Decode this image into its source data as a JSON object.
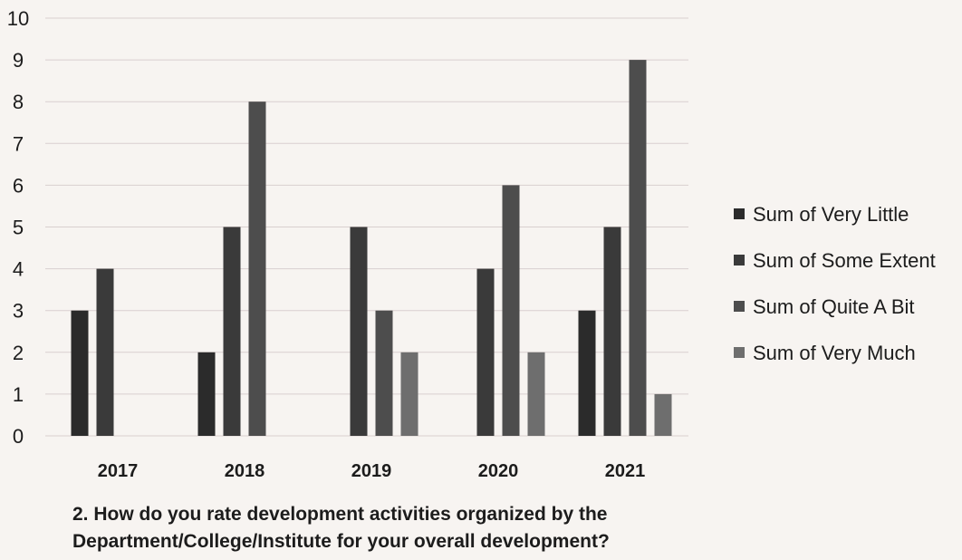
{
  "chart_data": {
    "type": "bar",
    "categories": [
      "2017",
      "2018",
      "2019",
      "2020",
      "2021"
    ],
    "series": [
      {
        "name": "Sum of Very Little",
        "values": [
          3,
          2,
          0,
          0,
          3
        ]
      },
      {
        "name": "Sum of Some Extent",
        "values": [
          4,
          5,
          5,
          4,
          5
        ]
      },
      {
        "name": "Sum of  Quite A Bit",
        "values": [
          0,
          8,
          3,
          6,
          9
        ]
      },
      {
        "name": "Sum of  Very Much",
        "values": [
          0,
          0,
          2,
          2,
          1
        ]
      }
    ],
    "yticks": [
      "0",
      "1",
      "2",
      "3",
      "4",
      "5",
      "6",
      "7",
      "8",
      "9",
      "10"
    ],
    "ylim": [
      0,
      10
    ],
    "grid": true,
    "legend_position": "right",
    "colors": [
      "#2b2b2b",
      "#3a3a3a",
      "#4d4d4d",
      "#6e6e6e"
    ],
    "title": "",
    "xlabel": "",
    "ylabel": ""
  },
  "caption": {
    "line1": "2.  How do you rate development activities organized by the",
    "line2": "Department/College/Institute for your overall development?"
  }
}
